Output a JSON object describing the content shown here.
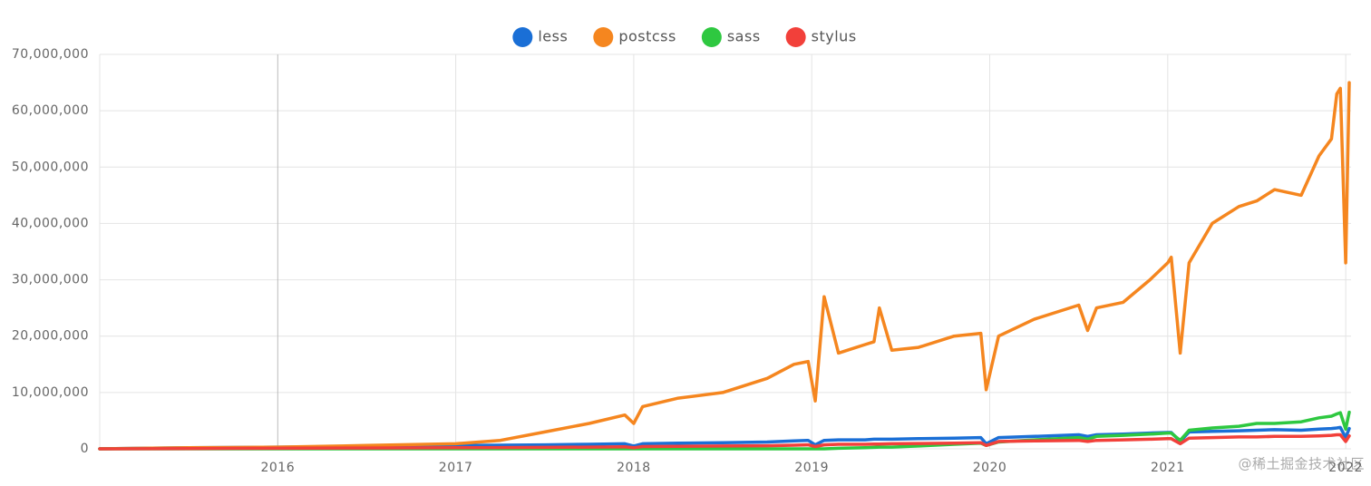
{
  "chart_data": {
    "type": "line",
    "legend": "top",
    "grid": true,
    "x": [
      2015.0,
      2015.5,
      2016.0,
      2016.5,
      2017.0,
      2017.25,
      2017.5,
      2017.75,
      2017.95,
      2018.0,
      2018.05,
      2018.25,
      2018.5,
      2018.75,
      2018.9,
      2018.98,
      2019.02,
      2019.07,
      2019.15,
      2019.3,
      2019.35,
      2019.38,
      2019.45,
      2019.6,
      2019.8,
      2019.95,
      2019.98,
      2020.05,
      2020.25,
      2020.5,
      2020.55,
      2020.6,
      2020.75,
      2020.9,
      2021.0,
      2021.02,
      2021.07,
      2021.12,
      2021.25,
      2021.4,
      2021.5,
      2021.6,
      2021.75,
      2021.85,
      2021.92,
      2021.95,
      2021.97,
      2022.0,
      2022.02
    ],
    "xlim": [
      2015,
      2022.03
    ],
    "xticks": [
      2016,
      2017,
      2018,
      2019,
      2020,
      2021,
      2022
    ],
    "ylim": [
      0,
      70000000
    ],
    "yticks": [
      {
        "value": 0,
        "label": "0"
      },
      {
        "value": 10000000,
        "label": "10,000,000"
      },
      {
        "value": 20000000,
        "label": "20,000,000"
      },
      {
        "value": 30000000,
        "label": "30,000,000"
      },
      {
        "value": 40000000,
        "label": "40,000,000"
      },
      {
        "value": 50000000,
        "label": "50,000,000"
      },
      {
        "value": 60000000,
        "label": "60,000,000"
      },
      {
        "value": 70000000,
        "label": "70,000,000"
      }
    ],
    "series": [
      {
        "name": "less",
        "color": "#1a6fd6",
        "values": [
          0,
          200000,
          300000,
          400000,
          600000,
          650000,
          700000,
          800000,
          900000,
          500000,
          900000,
          1000000,
          1100000,
          1200000,
          1400000,
          1500000,
          700000,
          1500000,
          1600000,
          1600000,
          1700000,
          1700000,
          1700000,
          1800000,
          1900000,
          2000000,
          900000,
          2000000,
          2200000,
          2500000,
          2200000,
          2500000,
          2600000,
          2800000,
          2900000,
          2900000,
          1300000,
          3000000,
          3100000,
          3200000,
          3300000,
          3400000,
          3300000,
          3500000,
          3600000,
          3700000,
          3800000,
          2000000,
          3600000
        ]
      },
      {
        "name": "postcss",
        "color": "#f5861f",
        "values": [
          0,
          200000,
          300000,
          600000,
          900000,
          1500000,
          3000000,
          4500000,
          6000000,
          4500000,
          7500000,
          9000000,
          10000000,
          12500000,
          15000000,
          15500000,
          8500000,
          27000000,
          17000000,
          18500000,
          19000000,
          25000000,
          17500000,
          18000000,
          20000000,
          20500000,
          10500000,
          20000000,
          23000000,
          25500000,
          21000000,
          25000000,
          26000000,
          30000000,
          33000000,
          34000000,
          17000000,
          33000000,
          40000000,
          43000000,
          44000000,
          46000000,
          45000000,
          52000000,
          55000000,
          63000000,
          64000000,
          33000000,
          65000000
        ]
      },
      {
        "name": "sass",
        "color": "#2ec840",
        "values": [
          0,
          0,
          0,
          0,
          0,
          0,
          0,
          0,
          0,
          0,
          0,
          0,
          0,
          0,
          0,
          0,
          0,
          0,
          100000,
          200000,
          250000,
          300000,
          300000,
          500000,
          800000,
          1000000,
          600000,
          1200000,
          1600000,
          2000000,
          1700000,
          2200000,
          2400000,
          2600000,
          2800000,
          2800000,
          1500000,
          3300000,
          3700000,
          4000000,
          4500000,
          4500000,
          4800000,
          5500000,
          5800000,
          6200000,
          6400000,
          3500000,
          6500000
        ]
      },
      {
        "name": "stylus",
        "color": "#f2403a",
        "values": [
          0,
          50000,
          100000,
          150000,
          200000,
          220000,
          250000,
          300000,
          350000,
          200000,
          400000,
          450000,
          500000,
          550000,
          650000,
          700000,
          400000,
          700000,
          800000,
          800000,
          850000,
          850000,
          900000,
          950000,
          1000000,
          1100000,
          600000,
          1300000,
          1400000,
          1500000,
          1300000,
          1500000,
          1600000,
          1700000,
          1800000,
          1800000,
          900000,
          1900000,
          2000000,
          2100000,
          2100000,
          2200000,
          2200000,
          2300000,
          2400000,
          2500000,
          2500000,
          1300000,
          2300000
        ]
      }
    ]
  },
  "watermark": "@稀土掘金技术社区"
}
